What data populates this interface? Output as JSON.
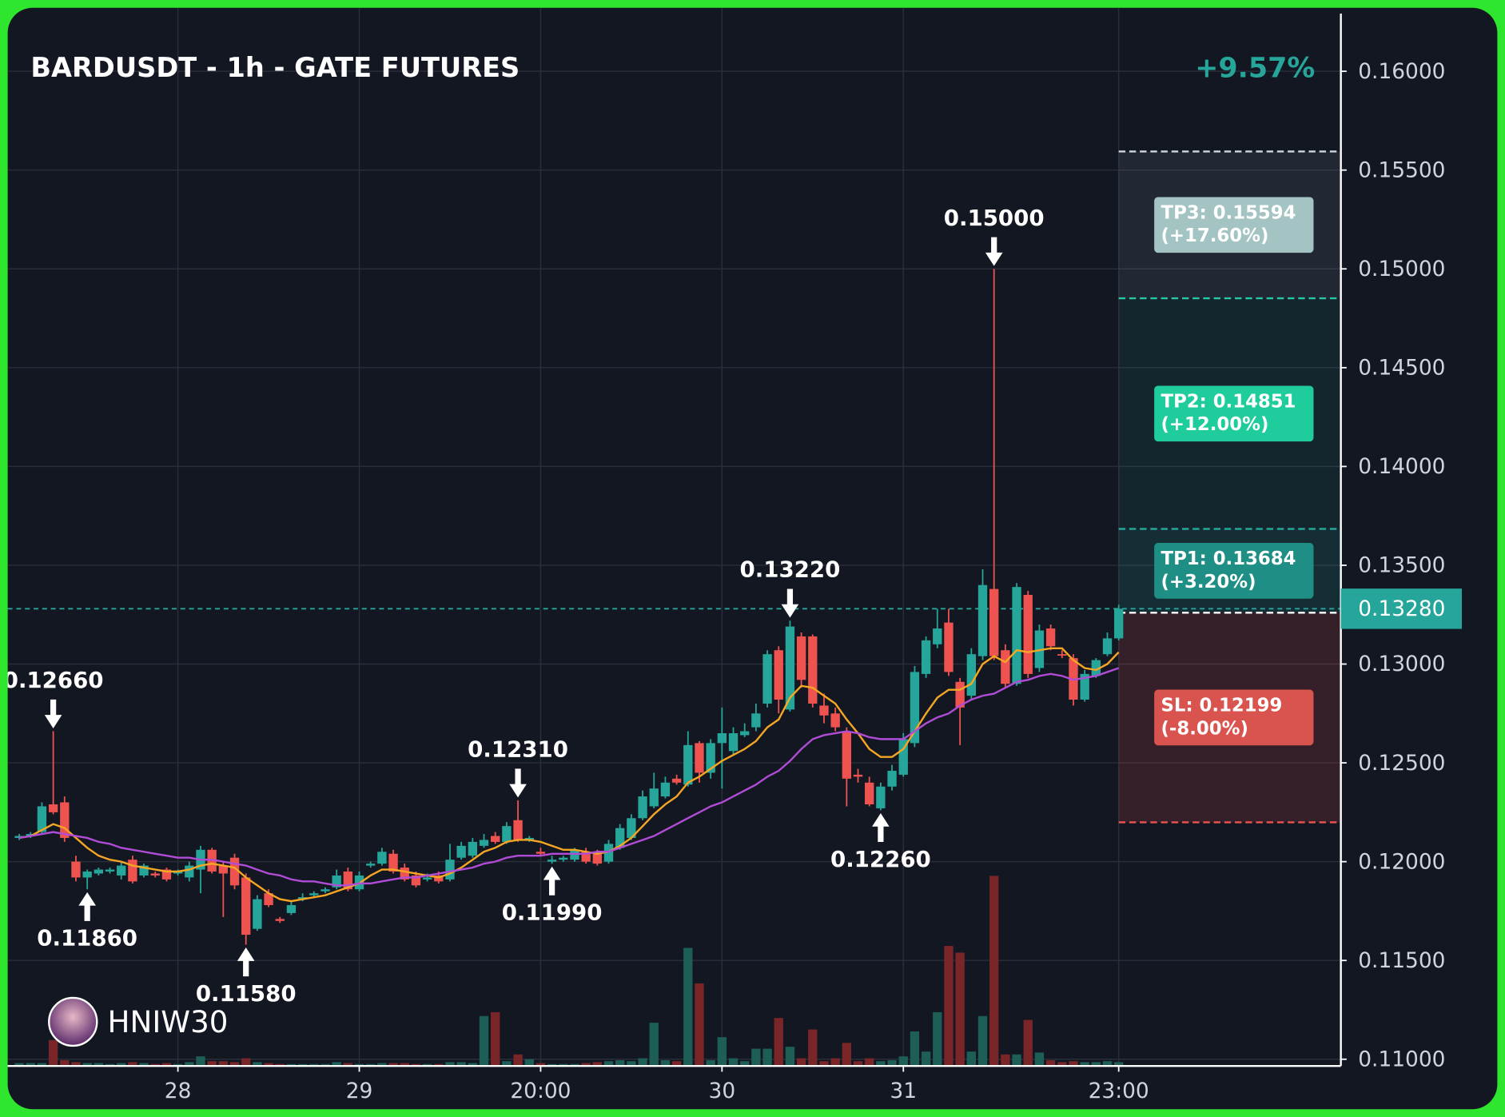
{
  "chart_data": {
    "type": "candlestick",
    "title": "BARDUSDT - 1h - GATE FUTURES",
    "change": "+9.57%",
    "watermark": "HNIW30",
    "xlim": [
      -1.02,
      116.6
    ],
    "ylim": [
      0.10966,
      0.16292
    ],
    "yticks": [
      {
        "value": 0.16,
        "label": "0.16000"
      },
      {
        "value": 0.155,
        "label": "0.15500"
      },
      {
        "value": 0.15,
        "label": "0.15000"
      },
      {
        "value": 0.145,
        "label": "0.14500"
      },
      {
        "value": 0.14,
        "label": "0.14000"
      },
      {
        "value": 0.135,
        "label": "0.13500"
      },
      {
        "value": 0.13,
        "label": "0.13000"
      },
      {
        "value": 0.125,
        "label": "0.12500"
      },
      {
        "value": 0.12,
        "label": "0.12000"
      },
      {
        "value": 0.115,
        "label": "0.11500"
      },
      {
        "value": 0.11,
        "label": "0.11000"
      }
    ],
    "xticks": [
      {
        "value": 14,
        "label": "28"
      },
      {
        "value": 30,
        "label": "29"
      },
      {
        "value": 46,
        "label": "20:00"
      },
      {
        "value": 62,
        "label": "30"
      },
      {
        "value": 78,
        "label": "31"
      },
      {
        "value": 97,
        "label": "23:00"
      }
    ],
    "grid": true,
    "up_color": "#26a69a",
    "down_color": "#ef5350",
    "ohlc": [
      [
        0.1212,
        0.1214,
        0.1211,
        0.1213
      ],
      [
        0.1213,
        0.1215,
        0.1212,
        0.1214
      ],
      [
        0.1215,
        0.123,
        0.1214,
        0.1228
      ],
      [
        0.1229,
        0.1266,
        0.1224,
        0.1225
      ],
      [
        0.123,
        0.1233,
        0.121,
        0.1212
      ],
      [
        0.12,
        0.1203,
        0.119,
        0.1192
      ],
      [
        0.1192,
        0.1196,
        0.1186,
        0.1195
      ],
      [
        0.1194,
        0.1197,
        0.1193,
        0.1196
      ],
      [
        0.1195,
        0.1197,
        0.1194,
        0.1196
      ],
      [
        0.1193,
        0.12,
        0.1191,
        0.1198
      ],
      [
        0.1201,
        0.1203,
        0.1189,
        0.119
      ],
      [
        0.1193,
        0.1199,
        0.1192,
        0.1198
      ],
      [
        0.1194,
        0.1195,
        0.1192,
        0.1193
      ],
      [
        0.1196,
        0.1197,
        0.119,
        0.1191
      ],
      [
        0.1194,
        0.1196,
        0.1193,
        0.1195
      ],
      [
        0.1192,
        0.12,
        0.119,
        0.1198
      ],
      [
        0.1196,
        0.1208,
        0.1184,
        0.1206
      ],
      [
        0.1206,
        0.1207,
        0.1194,
        0.1195
      ],
      [
        0.1198,
        0.12,
        0.1172,
        0.1194
      ],
      [
        0.1202,
        0.1204,
        0.1186,
        0.1188
      ],
      [
        0.1192,
        0.1194,
        0.1158,
        0.1163
      ],
      [
        0.1166,
        0.1183,
        0.1165,
        0.1181
      ],
      [
        0.1184,
        0.1186,
        0.1177,
        0.1178
      ],
      [
        0.1171,
        0.1172,
        0.1169,
        0.117
      ],
      [
        0.1174,
        0.118,
        0.1173,
        0.1178
      ],
      [
        0.1181,
        0.1184,
        0.118,
        0.1182
      ],
      [
        0.1183,
        0.1185,
        0.1182,
        0.1184
      ],
      [
        0.1185,
        0.1187,
        0.1184,
        0.1186
      ],
      [
        0.1187,
        0.1196,
        0.1186,
        0.1193
      ],
      [
        0.1195,
        0.1197,
        0.1185,
        0.1186
      ],
      [
        0.1186,
        0.1195,
        0.1185,
        0.1193
      ],
      [
        0.1198,
        0.12,
        0.1197,
        0.1199
      ],
      [
        0.1199,
        0.1207,
        0.1198,
        0.1205
      ],
      [
        0.1204,
        0.1206,
        0.1194,
        0.1195
      ],
      [
        0.1197,
        0.1199,
        0.119,
        0.1191
      ],
      [
        0.1193,
        0.1195,
        0.1187,
        0.1188
      ],
      [
        0.1191,
        0.1194,
        0.119,
        0.1192
      ],
      [
        0.1193,
        0.1195,
        0.1189,
        0.119
      ],
      [
        0.1191,
        0.1209,
        0.119,
        0.1201
      ],
      [
        0.1202,
        0.121,
        0.1201,
        0.1208
      ],
      [
        0.1203,
        0.1212,
        0.1202,
        0.121
      ],
      [
        0.1208,
        0.1214,
        0.1207,
        0.1211
      ],
      [
        0.1213,
        0.1215,
        0.1209,
        0.121
      ],
      [
        0.121,
        0.122,
        0.1209,
        0.1218
      ],
      [
        0.1221,
        0.1231,
        0.121,
        0.1211
      ],
      [
        0.1211,
        0.1213,
        0.121,
        0.1212
      ],
      [
        0.1205,
        0.1207,
        0.1203,
        0.1204
      ],
      [
        0.12,
        0.1203,
        0.1199,
        0.1201
      ],
      [
        0.1201,
        0.1203,
        0.12,
        0.1202
      ],
      [
        0.1201,
        0.1207,
        0.12,
        0.1206
      ],
      [
        0.1205,
        0.1207,
        0.1199,
        0.12
      ],
      [
        0.1205,
        0.1206,
        0.1198,
        0.1199
      ],
      [
        0.12,
        0.1211,
        0.1199,
        0.1209
      ],
      [
        0.1207,
        0.1219,
        0.1206,
        0.1217
      ],
      [
        0.1212,
        0.1224,
        0.1211,
        0.1222
      ],
      [
        0.1222,
        0.1236,
        0.1221,
        0.1233
      ],
      [
        0.1228,
        0.1245,
        0.1227,
        0.1237
      ],
      [
        0.1233,
        0.1243,
        0.1232,
        0.124
      ],
      [
        0.1242,
        0.1244,
        0.1239,
        0.124
      ],
      [
        0.1239,
        0.1266,
        0.1238,
        0.1259
      ],
      [
        0.126,
        0.1261,
        0.124,
        0.1245
      ],
      [
        0.1245,
        0.1262,
        0.1242,
        0.126
      ],
      [
        0.126,
        0.1278,
        0.1237,
        0.1265
      ],
      [
        0.1256,
        0.1268,
        0.1254,
        0.1265
      ],
      [
        0.1264,
        0.127,
        0.1263,
        0.1266
      ],
      [
        0.1268,
        0.128,
        0.1266,
        0.1275
      ],
      [
        0.128,
        0.1307,
        0.1278,
        0.1305
      ],
      [
        0.1307,
        0.1309,
        0.1275,
        0.1282
      ],
      [
        0.1277,
        0.1322,
        0.1276,
        0.1319
      ],
      [
        0.1314,
        0.1316,
        0.1288,
        0.1292
      ],
      [
        0.1314,
        0.1315,
        0.1278,
        0.128
      ],
      [
        0.1279,
        0.1285,
        0.127,
        0.1274
      ],
      [
        0.1275,
        0.1278,
        0.1266,
        0.1268
      ],
      [
        0.1266,
        0.1268,
        0.1228,
        0.1242
      ],
      [
        0.1244,
        0.1247,
        0.124,
        0.1243
      ],
      [
        0.124,
        0.1243,
        0.1228,
        0.1229
      ],
      [
        0.1227,
        0.124,
        0.1226,
        0.1238
      ],
      [
        0.1238,
        0.1249,
        0.1236,
        0.1246
      ],
      [
        0.1244,
        0.1265,
        0.1243,
        0.1262
      ],
      [
        0.126,
        0.1299,
        0.1258,
        0.1296
      ],
      [
        0.1295,
        0.1314,
        0.1293,
        0.1312
      ],
      [
        0.131,
        0.1328,
        0.1308,
        0.1318
      ],
      [
        0.1321,
        0.1328,
        0.1294,
        0.1296
      ],
      [
        0.1291,
        0.1293,
        0.1259,
        0.1278
      ],
      [
        0.1284,
        0.1308,
        0.1282,
        0.1305
      ],
      [
        0.1304,
        0.1348,
        0.1302,
        0.134
      ],
      [
        0.1338,
        0.15,
        0.1302,
        0.1304
      ],
      [
        0.1307,
        0.131,
        0.1288,
        0.129
      ],
      [
        0.129,
        0.1341,
        0.1289,
        0.1339
      ],
      [
        0.1335,
        0.1337,
        0.1293,
        0.1295
      ],
      [
        0.1298,
        0.132,
        0.1296,
        0.1317
      ],
      [
        0.1318,
        0.132,
        0.1307,
        0.1309
      ],
      [
        0.1305,
        0.1307,
        0.1303,
        0.1305
      ],
      [
        0.1303,
        0.1305,
        0.1279,
        0.1282
      ],
      [
        0.1282,
        0.1297,
        0.1281,
        0.1295
      ],
      [
        0.1294,
        0.1303,
        0.1293,
        0.1302
      ],
      [
        0.1305,
        0.1316,
        0.1304,
        0.1313
      ],
      [
        0.1313,
        0.133,
        0.1312,
        0.1328
      ]
    ],
    "volume": [
      3,
      3,
      3,
      27,
      6,
      4,
      3,
      3,
      2,
      3,
      4,
      3,
      2,
      3,
      2,
      4,
      10,
      5,
      5,
      4,
      8,
      4,
      3,
      2,
      2,
      2,
      2,
      2,
      4,
      3,
      2,
      2,
      3,
      3,
      3,
      2,
      2,
      2,
      4,
      4,
      3,
      52,
      56,
      5,
      12,
      7,
      3,
      2,
      2,
      2,
      3,
      4,
      5,
      6,
      5,
      8,
      45,
      6,
      5,
      123,
      86,
      6,
      30,
      8,
      5,
      18,
      18,
      50,
      20,
      8,
      38,
      5,
      8,
      24,
      5,
      8,
      5,
      6,
      10,
      36,
      15,
      56,
      125,
      118,
      15,
      52,
      198,
      12,
      12,
      48,
      14,
      6,
      4,
      5,
      4,
      4,
      5,
      4
    ],
    "series": [
      {
        "color": "#f5a623",
        "values": [
          0.1212,
          0.1213,
          0.1216,
          0.1219,
          0.1217,
          0.1212,
          0.1207,
          0.1203,
          0.1201,
          0.12,
          0.1198,
          0.1197,
          0.1196,
          0.1195,
          0.1195,
          0.1196,
          0.1198,
          0.1199,
          0.1198,
          0.1197,
          0.1192,
          0.1188,
          0.1184,
          0.1181,
          0.118,
          0.1181,
          0.1182,
          0.1183,
          0.1185,
          0.1187,
          0.1189,
          0.1193,
          0.1196,
          0.1196,
          0.1195,
          0.1194,
          0.1193,
          0.1192,
          0.1194,
          0.1197,
          0.1201,
          0.1205,
          0.1207,
          0.121,
          0.1211,
          0.1211,
          0.121,
          0.1208,
          0.1206,
          0.1206,
          0.1205,
          0.1204,
          0.1205,
          0.1208,
          0.1212,
          0.1218,
          0.1224,
          0.1229,
          0.1233,
          0.124,
          0.1243,
          0.1247,
          0.1251,
          0.1254,
          0.1257,
          0.1261,
          0.1268,
          0.1272,
          0.1283,
          0.1289,
          0.1288,
          0.1284,
          0.128,
          0.1272,
          0.1265,
          0.1257,
          0.1253,
          0.1253,
          0.1257,
          0.1266,
          0.1275,
          0.1283,
          0.1287,
          0.1287,
          0.129,
          0.13,
          0.1304,
          0.1301,
          0.1307,
          0.1306,
          0.1307,
          0.1308,
          0.1308,
          0.1302,
          0.1298,
          0.1297,
          0.13,
          0.1306
        ]
      },
      {
        "color": "#b04cd6",
        "values": [
          0.1212,
          0.1213,
          0.1214,
          0.1215,
          0.1214,
          0.1213,
          0.1212,
          0.121,
          0.1209,
          0.1207,
          0.1206,
          0.1205,
          0.1204,
          0.1203,
          0.1202,
          0.1202,
          0.1201,
          0.1201,
          0.12,
          0.1199,
          0.1198,
          0.1196,
          0.1194,
          0.1193,
          0.1191,
          0.119,
          0.119,
          0.1189,
          0.1188,
          0.1188,
          0.1189,
          0.1189,
          0.119,
          0.1191,
          0.1192,
          0.1192,
          0.1193,
          0.1194,
          0.1195,
          0.1196,
          0.1197,
          0.1199,
          0.12,
          0.1202,
          0.1203,
          0.1203,
          0.1203,
          0.1204,
          0.1204,
          0.1204,
          0.1204,
          0.1205,
          0.1205,
          0.1207,
          0.1209,
          0.1211,
          0.1213,
          0.1216,
          0.1219,
          0.1222,
          0.1225,
          0.1228,
          0.123,
          0.1233,
          0.1236,
          0.1239,
          0.1243,
          0.1246,
          0.1251,
          0.1257,
          0.1262,
          0.1264,
          0.1265,
          0.1266,
          0.1265,
          0.1263,
          0.1262,
          0.1262,
          0.1262,
          0.1266,
          0.127,
          0.1273,
          0.1275,
          0.1279,
          0.1282,
          0.1284,
          0.1285,
          0.1288,
          0.1291,
          0.1292,
          0.1294,
          0.1295,
          0.1294,
          0.1292,
          0.1293,
          0.1294,
          0.1296,
          0.1298
        ]
      }
    ],
    "annotations": [
      {
        "text": "0.12660",
        "x": 3,
        "value": 0.1266,
        "side": "above"
      },
      {
        "text": "0.11860",
        "x": 6,
        "value": 0.1186,
        "side": "below"
      },
      {
        "text": "0.11580",
        "x": 20,
        "value": 0.1158,
        "side": "below"
      },
      {
        "text": "0.12310",
        "x": 44,
        "value": 0.1231,
        "side": "above"
      },
      {
        "text": "0.11990",
        "x": 47,
        "value": 0.1199,
        "side": "below"
      },
      {
        "text": "0.13220",
        "x": 68,
        "value": 0.1322,
        "side": "above"
      },
      {
        "text": "0.12260",
        "x": 76,
        "value": 0.1226,
        "side": "below"
      },
      {
        "text": "0.15000",
        "x": 86,
        "value": 0.15,
        "side": "above"
      }
    ],
    "entry": 0.1326,
    "targets": [
      {
        "label": "TP3: 0.15594",
        "pct": "(+17.60%)",
        "value": 0.15594,
        "color": "#a3c4c3"
      },
      {
        "label": "TP2: 0.14851",
        "pct": "(+12.00%)",
        "value": 0.14851,
        "color": "#1fcc9c"
      },
      {
        "label": "TP1: 0.13684",
        "pct": "(+3.20%)",
        "value": 0.13684,
        "color": "#1f8f86"
      }
    ],
    "stop": {
      "label": "SL: 0.12199",
      "pct": "(-8.00%)",
      "value": 0.12199,
      "color": "#d9534f"
    },
    "last_price": {
      "value": 0.1328,
      "label": "0.13280"
    }
  }
}
